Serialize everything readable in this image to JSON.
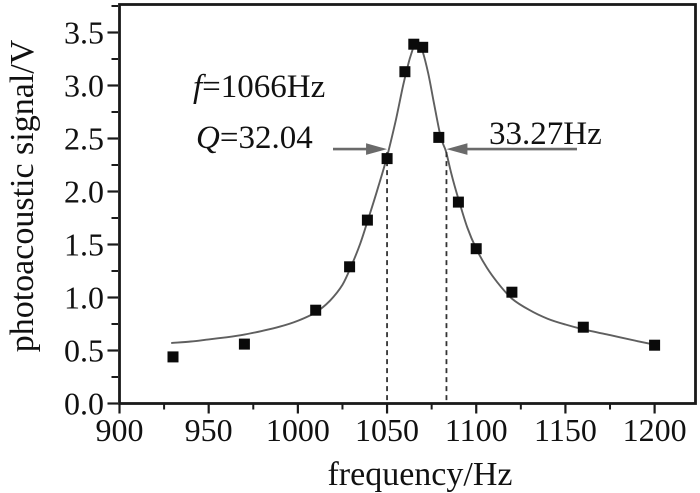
{
  "figure": {
    "background_color": "#ffffff",
    "frame_color": "#1a1a1a",
    "curve_color": "#5f5f5f",
    "arrow_color": "#6a6a6a",
    "dashed_line_color": "#333333",
    "point_color": "#0a0a0a",
    "text_color": "#111111"
  },
  "chart_data": {
    "type": "scatter",
    "title": "",
    "xlabel": "frequency/Hz",
    "ylabel": "photoacoustic signal/V",
    "xlim": [
      900,
      1223
    ],
    "ylim": [
      0,
      3.76
    ],
    "x_ticks": [
      900,
      950,
      1000,
      1050,
      1100,
      1150,
      1200
    ],
    "x_minor_ticks": [
      925,
      975,
      1025,
      1075,
      1125,
      1175
    ],
    "y_ticks": [
      0.0,
      0.5,
      1.0,
      1.5,
      2.0,
      2.5,
      3.0,
      3.5
    ],
    "y_minor_ticks": [
      0.25,
      0.75,
      1.25,
      1.75,
      2.25,
      2.75,
      3.25,
      3.75
    ],
    "grid": false,
    "legend": false,
    "series": [
      {
        "name": "measured data",
        "type": "scatter",
        "marker": "square",
        "color": "#0a0a0a",
        "points": [
          [
            930,
            0.44
          ],
          [
            970,
            0.56
          ],
          [
            1010,
            0.88
          ],
          [
            1029,
            1.29
          ],
          [
            1039,
            1.73
          ],
          [
            1050,
            2.31
          ],
          [
            1060,
            3.13
          ],
          [
            1065,
            3.39
          ],
          [
            1070,
            3.36
          ],
          [
            1079,
            2.51
          ],
          [
            1090,
            1.9
          ],
          [
            1100,
            1.46
          ],
          [
            1120,
            1.05
          ],
          [
            1160,
            0.72
          ],
          [
            1200,
            0.55
          ]
        ]
      },
      {
        "name": "resonance fit curve",
        "type": "line",
        "color": "#5f5f5f",
        "points": [
          [
            929,
            0.57
          ],
          [
            940,
            0.585
          ],
          [
            950,
            0.605
          ],
          [
            960,
            0.625
          ],
          [
            970,
            0.65
          ],
          [
            980,
            0.685
          ],
          [
            990,
            0.725
          ],
          [
            1000,
            0.78
          ],
          [
            1010,
            0.86
          ],
          [
            1018,
            0.97
          ],
          [
            1025,
            1.12
          ],
          [
            1030,
            1.3
          ],
          [
            1035,
            1.51
          ],
          [
            1040,
            1.77
          ],
          [
            1045,
            2.04
          ],
          [
            1050,
            2.33
          ],
          [
            1055,
            2.68
          ],
          [
            1059,
            3.0
          ],
          [
            1062,
            3.21
          ],
          [
            1064,
            3.32
          ],
          [
            1066,
            3.42
          ],
          [
            1068,
            3.4
          ],
          [
            1070,
            3.32
          ],
          [
            1073,
            3.12
          ],
          [
            1076,
            2.86
          ],
          [
            1080,
            2.52
          ],
          [
            1083,
            2.38
          ],
          [
            1086,
            2.17
          ],
          [
            1090,
            1.93
          ],
          [
            1095,
            1.66
          ],
          [
            1100,
            1.46
          ],
          [
            1106,
            1.28
          ],
          [
            1112,
            1.14
          ],
          [
            1120,
            0.99
          ],
          [
            1130,
            0.88
          ],
          [
            1140,
            0.8
          ],
          [
            1150,
            0.745
          ],
          [
            1160,
            0.7
          ],
          [
            1175,
            0.645
          ],
          [
            1190,
            0.59
          ],
          [
            1200,
            0.555
          ]
        ]
      }
    ],
    "annotations": {
      "resonance": {
        "symbol": "f",
        "rest": "=1066Hz"
      },
      "quality": {
        "symbol": "Q",
        "rest": "=32.04"
      },
      "bandwidth": {
        "text": "33.27Hz"
      },
      "fwhm": {
        "x_left_hz": 1050,
        "x_right_hz": 1083.3,
        "level_v": 2.4
      }
    }
  }
}
